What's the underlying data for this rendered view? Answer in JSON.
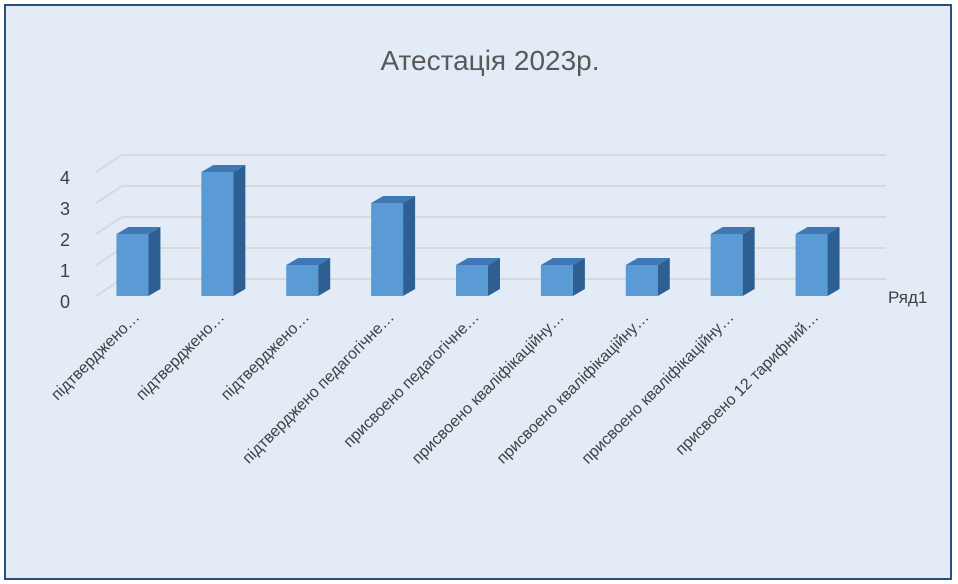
{
  "chart_data": {
    "type": "bar",
    "title": "Атестація 2023р.",
    "categories": [
      "підтверджено…",
      "підтверджено…",
      "підтверджено…",
      "підтверджено педагогічне…",
      "присвоено педагогічне…",
      "присвоено кваліфікаційну…",
      "присвоено кваліфікаційну…",
      "присвоено кваліфікаційну…",
      "присвоено 12 тарифний…"
    ],
    "series": [
      {
        "name": "Ряд1",
        "values": [
          2,
          4,
          1,
          3,
          1,
          1,
          1,
          2,
          2
        ]
      }
    ],
    "yticks": [
      "0",
      "1",
      "2",
      "3",
      "4"
    ],
    "ylim": [
      0,
      4
    ],
    "grid": true,
    "legend": "right",
    "colors": {
      "bar_front": "#5b9bd5",
      "bar_side": "#2e5f93",
      "bar_top": "#3f78b5",
      "grid": "#d9d9d9",
      "background": "#e2ebf6",
      "border": "#2c4f7a"
    }
  }
}
